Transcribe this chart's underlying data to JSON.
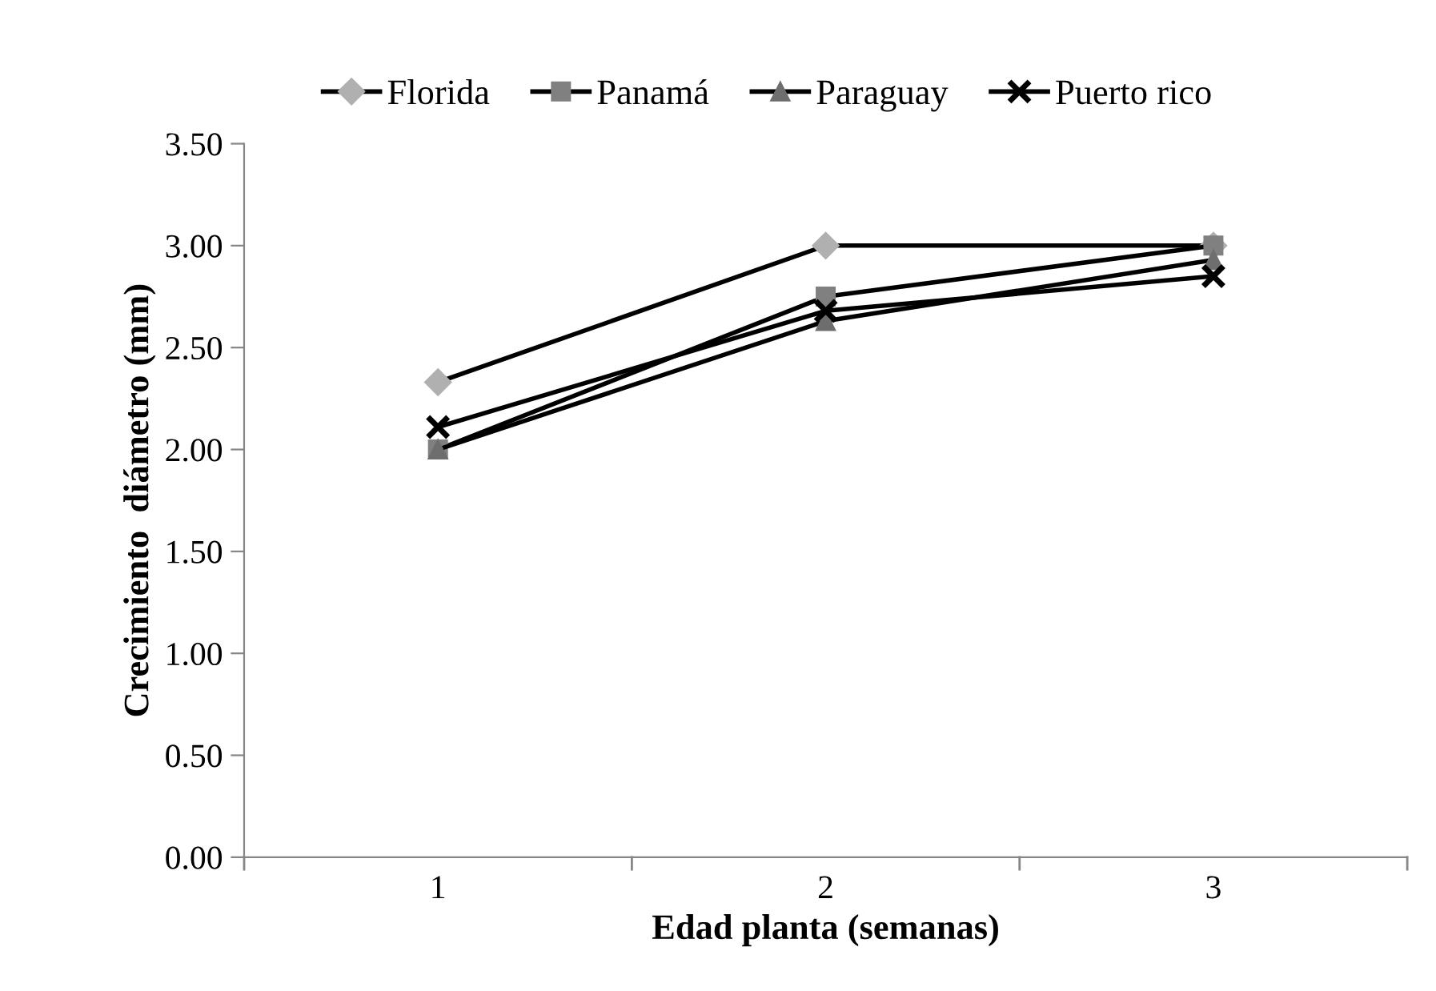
{
  "chart_data": {
    "type": "line",
    "xlabel": "Edad planta (semanas)",
    "ylabel": "Crecimiento  diámetro (mm)",
    "categories": [
      "1",
      "2",
      "3"
    ],
    "series": [
      {
        "name": "Florida",
        "color": "#b0b0b0",
        "marker": "diamond",
        "values": [
          2.33,
          3.0,
          3.0
        ]
      },
      {
        "name": "Panamá",
        "color": "#808080",
        "marker": "square",
        "values": [
          2.0,
          2.75,
          3.0
        ]
      },
      {
        "name": "Paraguay",
        "color": "#6e6e6e",
        "marker": "triangle",
        "values": [
          2.0,
          2.63,
          2.93
        ]
      },
      {
        "name": "Puerto rico",
        "color": "#000000",
        "marker": "cross",
        "values": [
          2.11,
          2.68,
          2.85
        ]
      }
    ],
    "ylim": [
      0,
      3.5
    ],
    "yticks": [
      {
        "value": 0,
        "label": "0.00"
      },
      {
        "value": 0.5,
        "label": "0.50"
      },
      {
        "value": 1,
        "label": "1.00"
      },
      {
        "value": 1.5,
        "label": "1.50"
      },
      {
        "value": 2,
        "label": "2.00"
      },
      {
        "value": 2.5,
        "label": "2.50"
      },
      {
        "value": 3,
        "label": "3.00"
      },
      {
        "value": 3.5,
        "label": "3.50"
      }
    ],
    "grid": false,
    "legend": "top",
    "line_style": "solid"
  }
}
